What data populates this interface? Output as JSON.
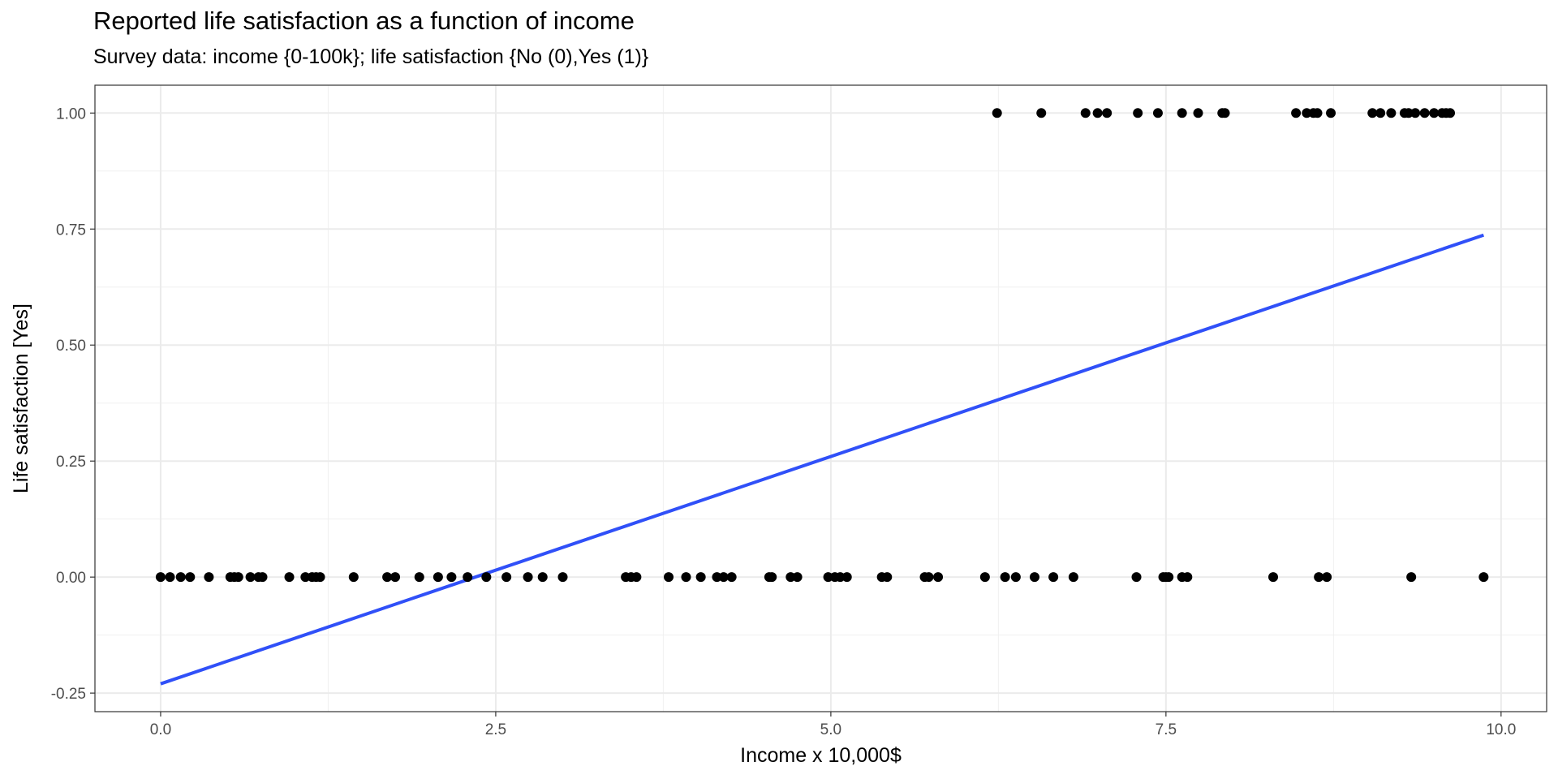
{
  "chart_data": {
    "type": "scatter",
    "title": "Reported life satisfaction as a function of income",
    "subtitle": "Survey data: income {0-100k}; life satisfaction {No (0),Yes (1)}",
    "xlabel": "Income x 10,000$",
    "ylabel": "Life satisfaction [Yes]",
    "xlim": [
      -0.49,
      10.34
    ],
    "ylim": [
      -0.29,
      1.06
    ],
    "x_ticks": [
      0.0,
      2.5,
      5.0,
      7.5,
      10.0
    ],
    "x_tick_labels": [
      "0.0",
      "2.5",
      "5.0",
      "7.5",
      "10.0"
    ],
    "y_ticks": [
      -0.25,
      0.0,
      0.25,
      0.5,
      0.75,
      1.0
    ],
    "y_tick_labels": [
      "-0.25",
      "0.00",
      "0.25",
      "0.50",
      "0.75",
      "1.00"
    ],
    "grid": true,
    "series": [
      {
        "type": "scatter",
        "color": "#000000",
        "x": [
          0.0,
          0.07,
          0.15,
          0.22,
          0.36,
          0.52,
          0.55,
          0.58,
          0.67,
          0.73,
          0.76,
          0.96,
          1.08,
          1.13,
          1.16,
          1.19,
          1.44,
          1.69,
          1.75,
          1.93,
          2.07,
          2.17,
          2.29,
          2.43,
          2.58,
          2.74,
          2.85,
          3.0,
          3.47,
          3.51,
          3.55,
          3.79,
          3.92,
          4.03,
          4.15,
          4.2,
          4.26,
          4.54,
          4.56,
          4.7,
          4.75,
          4.98,
          5.03,
          5.07,
          5.12,
          5.38,
          5.42,
          5.7,
          5.73,
          5.8,
          6.15,
          6.3,
          6.38,
          6.52,
          6.66,
          6.81,
          7.28,
          7.48,
          7.5,
          7.52,
          7.62,
          7.66,
          8.3,
          8.64,
          8.7,
          9.33,
          9.87,
          6.24,
          6.57,
          6.9,
          6.99,
          7.06,
          7.29,
          7.44,
          7.62,
          7.74,
          7.92,
          7.94,
          8.47,
          8.55,
          8.6,
          8.63,
          8.73,
          9.04,
          9.1,
          9.18,
          9.28,
          9.31,
          9.36,
          9.43,
          9.5,
          9.56,
          9.59,
          9.62
        ],
        "y": [
          0,
          0,
          0,
          0,
          0,
          0,
          0,
          0,
          0,
          0,
          0,
          0,
          0,
          0,
          0,
          0,
          0,
          0,
          0,
          0,
          0,
          0,
          0,
          0,
          0,
          0,
          0,
          0,
          0,
          0,
          0,
          0,
          0,
          0,
          0,
          0,
          0,
          0,
          0,
          0,
          0,
          0,
          0,
          0,
          0,
          0,
          0,
          0,
          0,
          0,
          0,
          0,
          0,
          0,
          0,
          0,
          0,
          0,
          0,
          0,
          0,
          0,
          0,
          0,
          0,
          0,
          0,
          1,
          1,
          1,
          1,
          1,
          1,
          1,
          1,
          1,
          1,
          1,
          1,
          1,
          1,
          1,
          1,
          1,
          1,
          1,
          1,
          1,
          1,
          1,
          1,
          1,
          1,
          1
        ]
      },
      {
        "type": "line",
        "color": "#3050f8",
        "x": [
          0.0,
          9.87
        ],
        "y": [
          -0.23,
          0.737
        ]
      }
    ]
  }
}
